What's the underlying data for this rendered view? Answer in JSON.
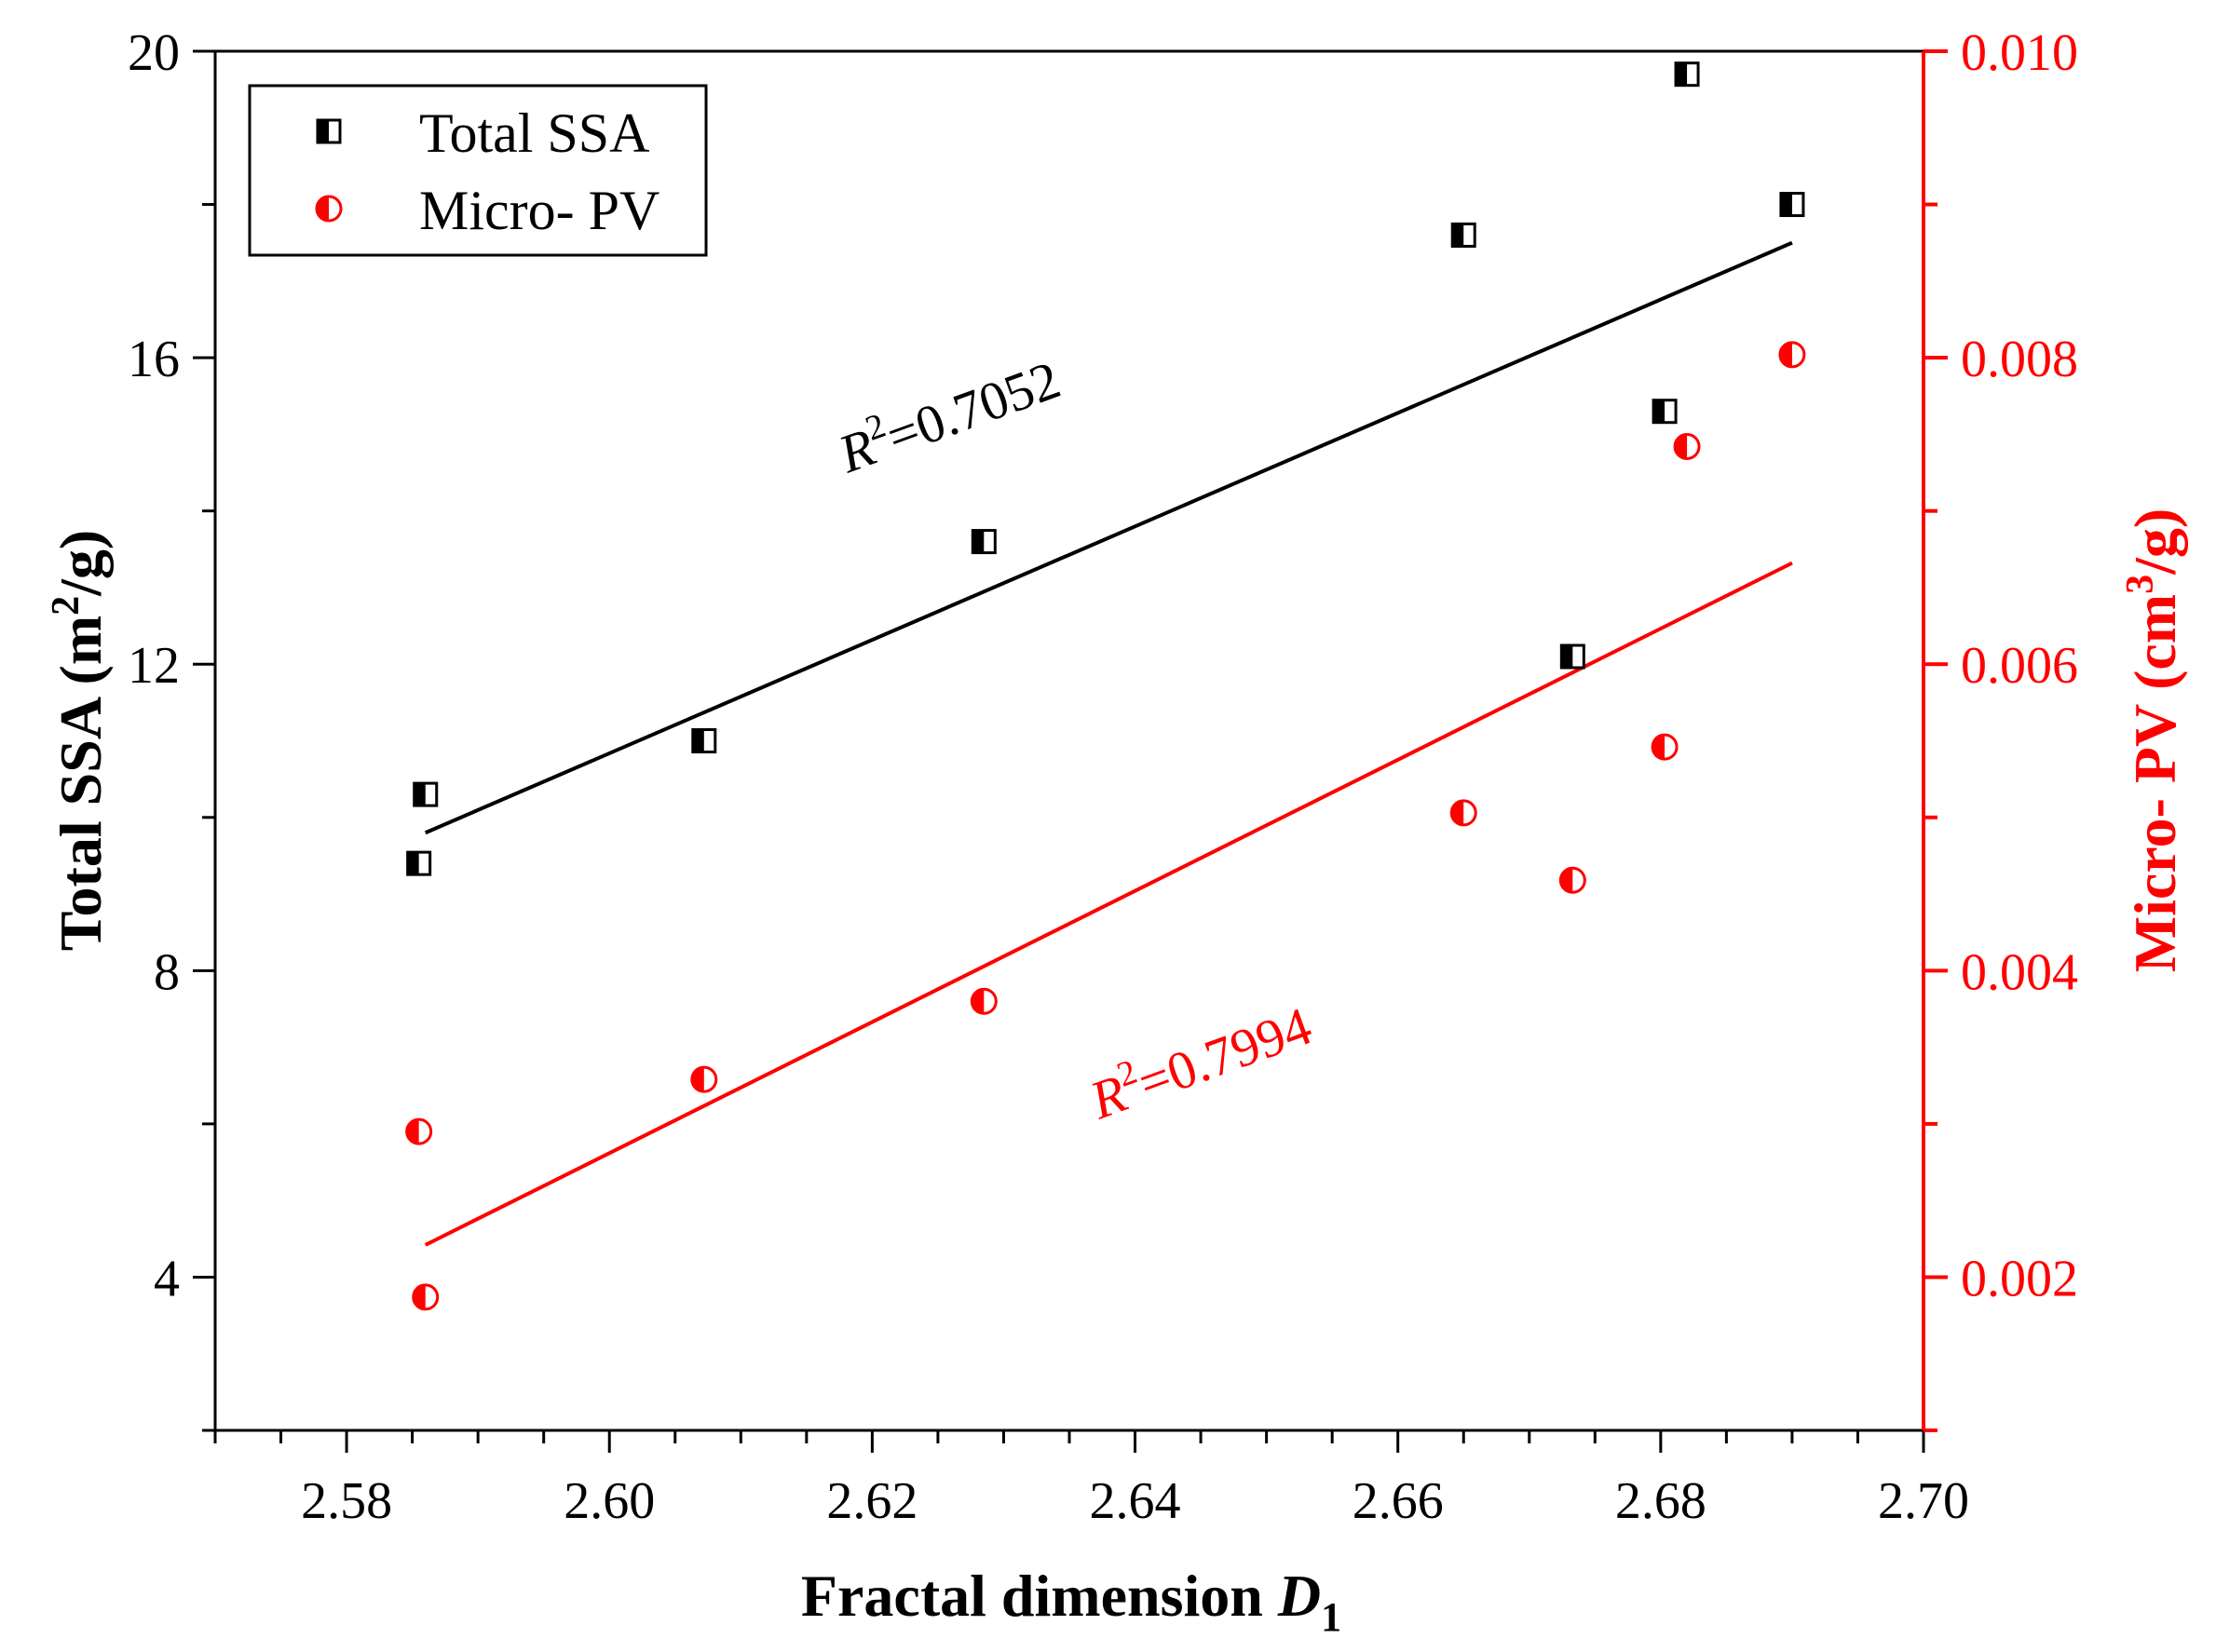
{
  "chart_data": {
    "type": "scatter",
    "title": "",
    "xlabel": "Fractal dimension ",
    "xlabel_italic": "D",
    "xlabel_subscript": "1",
    "xlim": [
      2.57,
      2.7
    ],
    "xticks": [
      2.58,
      2.6,
      2.62,
      2.64,
      2.66,
      2.68,
      2.7
    ],
    "xtick_labels": [
      "2.58",
      "2.60",
      "2.62",
      "2.64",
      "2.66",
      "2.68",
      "2.70"
    ],
    "y_left": {
      "label_main": "Total SSA (m",
      "label_sup": "2",
      "label_end": "/g)",
      "lim": [
        2,
        20
      ],
      "ticks": [
        4,
        8,
        12,
        16,
        20
      ],
      "tick_labels": [
        "4",
        "8",
        "12",
        "16",
        "20"
      ],
      "color": "#000000"
    },
    "y_right": {
      "label_main": "Micro- PV (cm",
      "label_sup": "3",
      "label_end": "/g)",
      "lim": [
        0.001,
        0.01
      ],
      "ticks": [
        0.002,
        0.004,
        0.006,
        0.008,
        0.01
      ],
      "tick_labels": [
        "0.002",
        "0.004",
        "0.006",
        "0.008",
        "0.010"
      ],
      "color": "#ff0000"
    },
    "series": [
      {
        "name": "Total SSA",
        "axis": "left",
        "marker": "half-filled-square",
        "color": "#000000",
        "points": [
          {
            "x": 2.5855,
            "y": 9.4
          },
          {
            "x": 2.586,
            "y": 10.3
          },
          {
            "x": 2.6072,
            "y": 11.0
          },
          {
            "x": 2.6285,
            "y": 13.6
          },
          {
            "x": 2.665,
            "y": 17.6
          },
          {
            "x": 2.6733,
            "y": 12.1
          },
          {
            "x": 2.6803,
            "y": 15.3
          },
          {
            "x": 2.682,
            "y": 19.7
          },
          {
            "x": 2.69,
            "y": 18.0
          }
        ],
        "fit": {
          "x": [
            2.586,
            2.69
          ],
          "y": [
            9.8,
            17.5
          ]
        },
        "annotation_prefix": "R",
        "annotation_sup": "2",
        "annotation_value": "=0.7052"
      },
      {
        "name": "Micro- PV",
        "axis": "right",
        "marker": "half-filled-circle",
        "color": "#ff0000",
        "points": [
          {
            "x": 2.5855,
            "y": 0.00295
          },
          {
            "x": 2.586,
            "y": 0.00187
          },
          {
            "x": 2.6072,
            "y": 0.00329
          },
          {
            "x": 2.6285,
            "y": 0.0038
          },
          {
            "x": 2.665,
            "y": 0.00503
          },
          {
            "x": 2.6733,
            "y": 0.00459
          },
          {
            "x": 2.6803,
            "y": 0.00546
          },
          {
            "x": 2.682,
            "y": 0.00742
          },
          {
            "x": 2.69,
            "y": 0.00802
          }
        ],
        "fit": {
          "x": [
            2.586,
            2.69
          ],
          "y": [
            0.00221,
            0.00666
          ]
        },
        "annotation_prefix": "R",
        "annotation_sup": "2",
        "annotation_value": "=0.7994"
      }
    ],
    "legend_placement": "top-left",
    "grid": false
  }
}
